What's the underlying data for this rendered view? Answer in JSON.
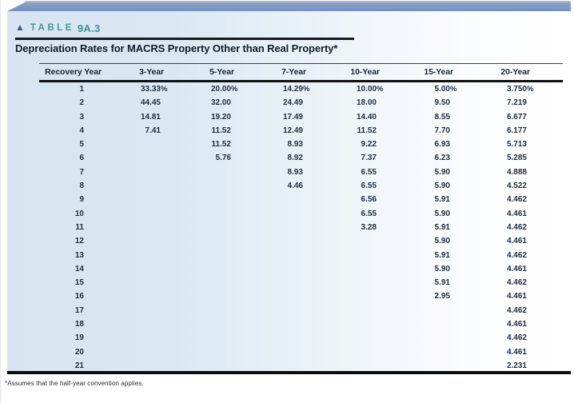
{
  "table_label": {
    "triangle": "▲",
    "word": "TABLE",
    "number": "9A.3"
  },
  "title": "Depreciation Rates for MACRS Property Other than Real Property*",
  "table": {
    "columns": [
      "Recovery Year",
      "3-Year",
      "5-Year",
      "7-Year",
      "10-Year",
      "15-Year",
      "20-Year"
    ],
    "rows": [
      {
        "year": "1",
        "values": [
          "33.33%",
          "20.00%",
          "14.29%",
          "10.00%",
          "5.00%",
          "3.750%"
        ]
      },
      {
        "year": "2",
        "values": [
          "44.45",
          "32.00",
          "24.49",
          "18.00",
          "9.50",
          "7.219"
        ]
      },
      {
        "year": "3",
        "values": [
          "14.81",
          "19.20",
          "17.49",
          "14.40",
          "8.55",
          "6.677"
        ]
      },
      {
        "year": "4",
        "values": [
          "7.41",
          "11.52",
          "12.49",
          "11.52",
          "7.70",
          "6.177"
        ]
      },
      {
        "year": "5",
        "values": [
          "",
          "11.52",
          "8.93",
          "9.22",
          "6.93",
          "5.713"
        ]
      },
      {
        "year": "6",
        "values": [
          "",
          "5.76",
          "8.92",
          "7.37",
          "6.23",
          "5.285"
        ]
      },
      {
        "year": "7",
        "values": [
          "",
          "",
          "8.93",
          "6.55",
          "5.90",
          "4.888"
        ]
      },
      {
        "year": "8",
        "values": [
          "",
          "",
          "4.46",
          "6.55",
          "5.90",
          "4.522"
        ]
      },
      {
        "year": "9",
        "values": [
          "",
          "",
          "",
          "6.56",
          "5.91",
          "4.462"
        ]
      },
      {
        "year": "10",
        "values": [
          "",
          "",
          "",
          "6.55",
          "5.90",
          "4.461"
        ]
      },
      {
        "year": "11",
        "values": [
          "",
          "",
          "",
          "3.28",
          "5.91",
          "4.462"
        ]
      },
      {
        "year": "12",
        "values": [
          "",
          "",
          "",
          "",
          "5.90",
          "4.461"
        ]
      },
      {
        "year": "13",
        "values": [
          "",
          "",
          "",
          "",
          "5.91",
          "4.462"
        ]
      },
      {
        "year": "14",
        "values": [
          "",
          "",
          "",
          "",
          "5.90",
          "4.461"
        ]
      },
      {
        "year": "15",
        "values": [
          "",
          "",
          "",
          "",
          "5.91",
          "4.462"
        ]
      },
      {
        "year": "16",
        "values": [
          "",
          "",
          "",
          "",
          "2.95",
          "4.461"
        ]
      },
      {
        "year": "17",
        "values": [
          "",
          "",
          "",
          "",
          "",
          "4.462"
        ]
      },
      {
        "year": "18",
        "values": [
          "",
          "",
          "",
          "",
          "",
          "4.461"
        ]
      },
      {
        "year": "19",
        "values": [
          "",
          "",
          "",
          "",
          "",
          "4.462"
        ]
      },
      {
        "year": "20",
        "values": [
          "",
          "",
          "",
          "",
          "",
          "4.461"
        ]
      },
      {
        "year": "21",
        "values": [
          "",
          "",
          "",
          "",
          "",
          "2.231"
        ]
      }
    ]
  },
  "footnote": "*Assumes that the half-year convention applies.",
  "colors": {
    "top_bar": "#7d98c4",
    "panel_blue": "#d7e5f1",
    "teal_label": "#44989f",
    "accent_triangle": "#2d60a6",
    "text_navy": "#1f2c3d",
    "rule_black": "#101114"
  }
}
